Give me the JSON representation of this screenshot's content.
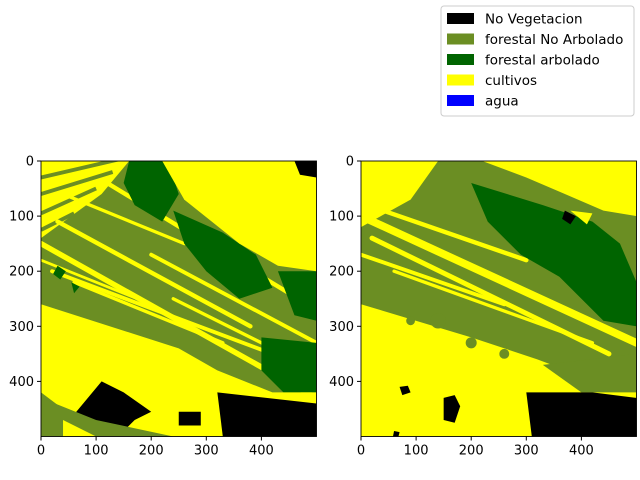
{
  "legend": {
    "location": "upper right, above panels",
    "entries": [
      {
        "label": "No Vegetacion",
        "color": "#000000"
      },
      {
        "label": "forestal No Arbolado",
        "color": "#6b8e23"
      },
      {
        "label": "forestal arbolado",
        "color": "#006400"
      },
      {
        "label": "cultivos",
        "color": "#ffff00"
      },
      {
        "label": "agua",
        "color": "#0000ff"
      }
    ]
  },
  "chart_data": [
    {
      "type": "heatmap",
      "description_role": "left panel (land-cover classification map)",
      "image_size": [
        500,
        500
      ],
      "xlim": [
        0,
        500
      ],
      "ylim": [
        500,
        0
      ],
      "xticks": [
        "0",
        "100",
        "200",
        "300",
        "400"
      ],
      "yticks": [
        "0",
        "100",
        "200",
        "300",
        "400"
      ],
      "classes": [
        "No Vegetacion",
        "forestal No Arbolado",
        "forestal arbolado",
        "cultivos",
        "agua"
      ]
    },
    {
      "type": "heatmap",
      "description_role": "right panel (land-cover classification map)",
      "image_size": [
        500,
        500
      ],
      "xlim": [
        0,
        500
      ],
      "ylim": [
        500,
        0
      ],
      "xticks": [
        "0",
        "100",
        "200",
        "300",
        "400"
      ],
      "yticks": [
        "0",
        "100",
        "200",
        "300",
        "400"
      ],
      "classes": [
        "No Vegetacion",
        "forestal No Arbolado",
        "forestal arbolado",
        "cultivos",
        "agua"
      ]
    }
  ]
}
